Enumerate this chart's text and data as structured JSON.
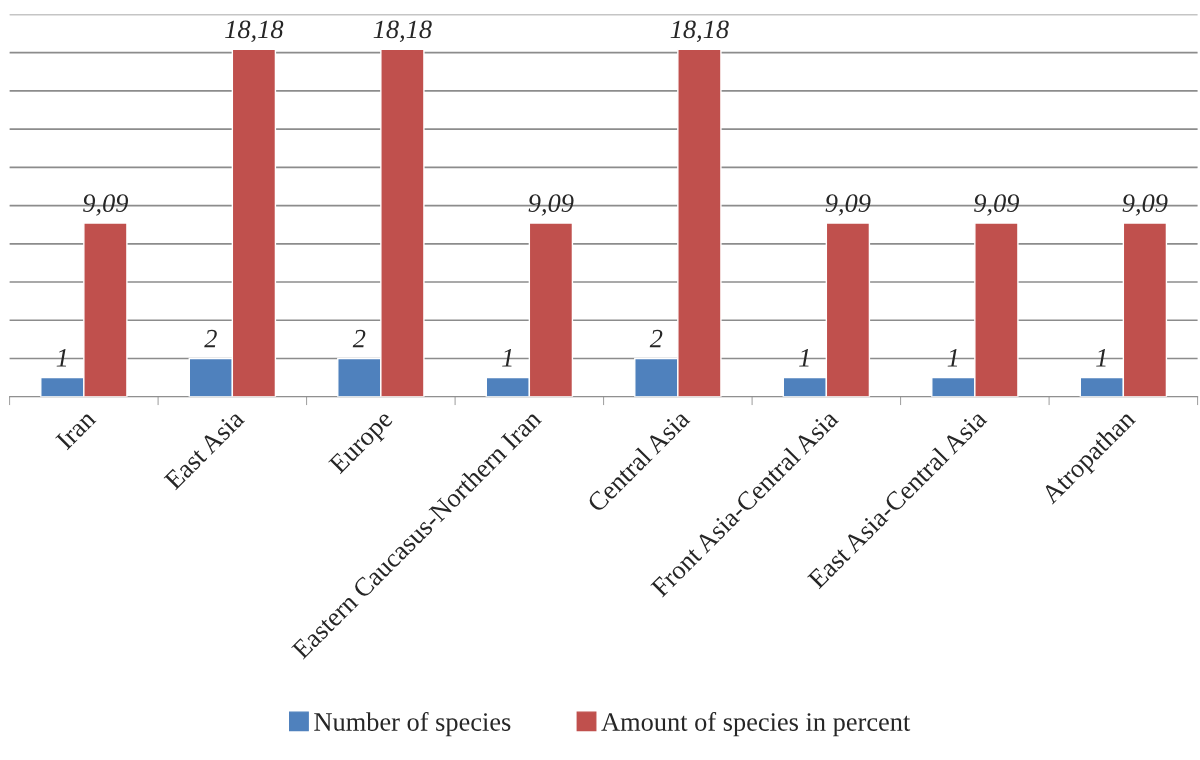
{
  "chart_data": {
    "type": "bar",
    "categories": [
      "Iran",
      "East Asia",
      "Europe",
      "Eastern Caucasus-Northern Iran",
      "Central Asia",
      "Front Asia-Central Asia",
      "East Asia-Central Asia",
      "Atropathan"
    ],
    "series": [
      {
        "name": "Number of species",
        "color": "#4f81bd",
        "values": [
          1,
          2,
          2,
          1,
          2,
          1,
          1,
          1
        ]
      },
      {
        "name": "Amount of species in percent",
        "color": "#c0504d",
        "values": [
          9.09,
          18.18,
          18.18,
          9.09,
          18.18,
          9.09,
          9.09,
          9.09
        ],
        "value_labels": [
          "9,09",
          "18,18",
          "18,18",
          "9,09",
          "18,18",
          "9,09",
          "9,09",
          "9,09"
        ]
      }
    ],
    "data_labels": true,
    "ylim": [
      0,
      20
    ],
    "yticks": [
      {
        "value": 0,
        "label": null
      },
      {
        "value": 2,
        "label": null
      },
      {
        "value": 4,
        "label": null
      },
      {
        "value": 6,
        "label": null
      },
      {
        "value": 8,
        "label": null
      },
      {
        "value": 10,
        "label": null
      },
      {
        "value": 12,
        "label": null
      },
      {
        "value": 14,
        "label": null
      },
      {
        "value": 16,
        "label": null
      },
      {
        "value": 18,
        "label": null
      },
      {
        "value": 20,
        "label": null
      }
    ],
    "tick_labels": "x",
    "grid": "y",
    "legend": "bottom"
  }
}
